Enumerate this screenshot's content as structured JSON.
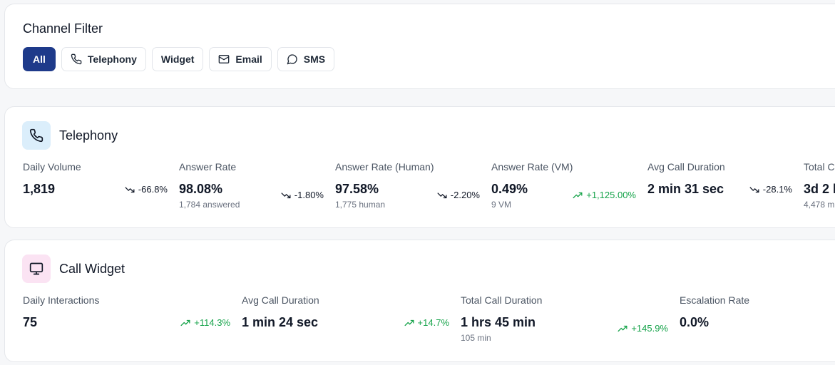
{
  "filter": {
    "title": "Channel Filter",
    "chips": [
      {
        "label": "All",
        "active": true
      },
      {
        "label": "Telephony",
        "icon": "phone-icon"
      },
      {
        "label": "Widget"
      },
      {
        "label": "Email",
        "icon": "mail-icon"
      },
      {
        "label": "SMS",
        "icon": "message-circle-icon"
      }
    ]
  },
  "telephony": {
    "title": "Telephony",
    "icon": "phone-icon",
    "icon_bg": "#dbeefb",
    "metrics": [
      {
        "label": "Daily Volume",
        "value": "1,819",
        "sub": "",
        "delta": "-66.8%",
        "trend": "down"
      },
      {
        "label": "Answer Rate",
        "value": "98.08%",
        "sub": "1,784 answered",
        "delta": "-1.80%",
        "trend": "down"
      },
      {
        "label": "Answer Rate (Human)",
        "value": "97.58%",
        "sub": "1,775 human",
        "delta": "-2.20%",
        "trend": "down"
      },
      {
        "label": "Answer Rate (VM)",
        "value": "0.49%",
        "sub": "9 VM",
        "delta": "+1,125.00%",
        "trend": "up"
      },
      {
        "label": "Avg Call Duration",
        "value": "2 min 31 sec",
        "sub": "",
        "delta": "-28.1%",
        "trend": "down"
      },
      {
        "label": "Total C",
        "value": "3d 2 h",
        "sub": "4,478 mi",
        "delta": "",
        "trend": ""
      }
    ]
  },
  "widget": {
    "title": "Call Widget",
    "icon": "monitor-icon",
    "icon_bg": "#fbe3f3",
    "metrics": [
      {
        "label": "Daily Interactions",
        "value": "75",
        "sub": "",
        "delta": "+114.3%",
        "trend": "up"
      },
      {
        "label": "Avg Call Duration",
        "value": "1 min 24 sec",
        "sub": "",
        "delta": "+14.7%",
        "trend": "up"
      },
      {
        "label": "Total Call Duration",
        "value": "1 hrs 45 min",
        "sub": "105 min",
        "delta": "+145.9%",
        "trend": "up"
      },
      {
        "label": "Escalation Rate",
        "value": "0.0%",
        "sub": "",
        "delta": "",
        "trend": ""
      }
    ]
  },
  "colors": {
    "accent": "#1e3a8a",
    "up": "#16a34a",
    "down": "#111827"
  }
}
